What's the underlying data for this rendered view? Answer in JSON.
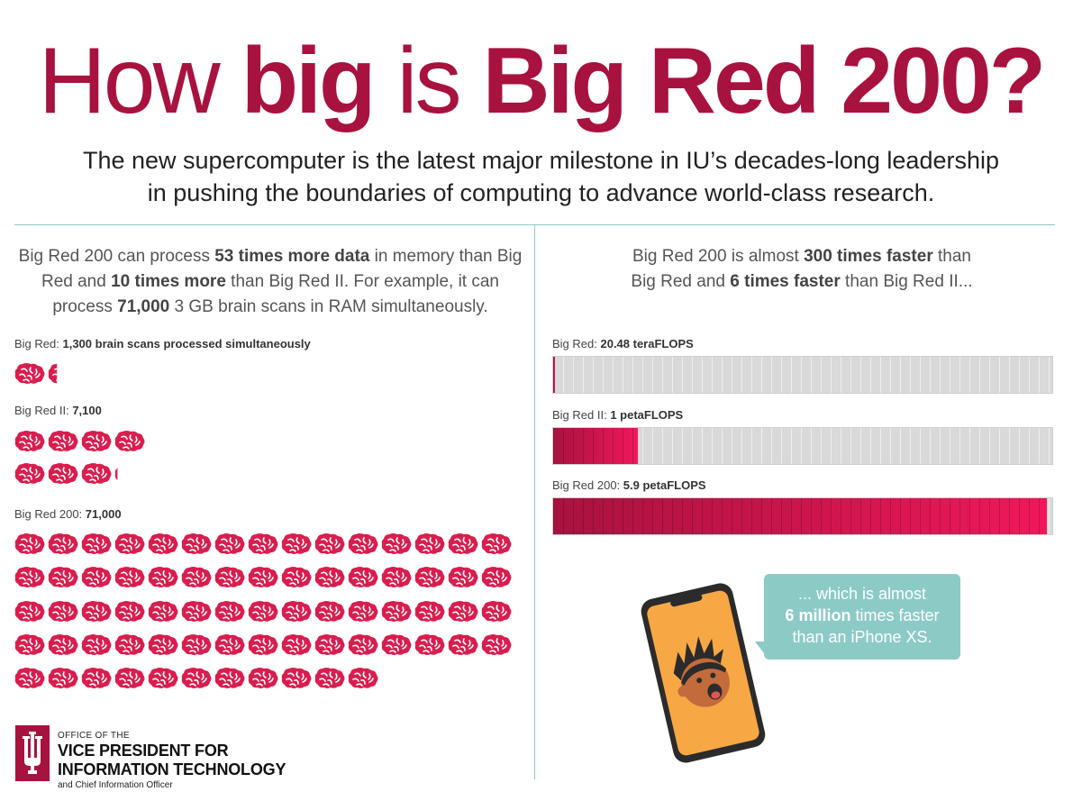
{
  "header": {
    "title_part1": "How ",
    "title_part2": "big",
    "title_part3": " is ",
    "title_part4": "Big Red 200?",
    "subtitle_line1": "The new supercomputer is the latest major milestone in IU’s decades-long leadership",
    "subtitle_line2": "in pushing the boundaries of computing to advance world-class research."
  },
  "left": {
    "intro": {
      "t1": "Big Red 200 can process ",
      "b1": "53 times more data",
      "t2": " in memory than Big Red and ",
      "b2": "10 times more",
      "t3": " than Big Red II. For example, it can process ",
      "b3": "71,000",
      "t4": " 3 GB brain scans in RAM simultaneously."
    },
    "groups": [
      {
        "name": "Big Red: ",
        "value": "1,300 brain scans processed simultaneously",
        "count": 1.3
      },
      {
        "name": "Big Red II: ",
        "value": "7,100",
        "count": 7.1
      },
      {
        "name": "Big Red 200: ",
        "value": "71,000",
        "count": 71
      }
    ]
  },
  "right": {
    "intro": {
      "t1": "Big Red 200 is almost ",
      "b1": "300 times faster",
      "t2": " than Big Red and ",
      "b2": "6 times faster",
      "t3": " than Big Red II..."
    },
    "bars": [
      {
        "name": "Big Red: ",
        "value": "20.48 teraFLOPS",
        "fraction": 0.0035
      },
      {
        "name": "Big Red II: ",
        "value": "1 petaFLOPS",
        "fraction": 0.169
      },
      {
        "name": "Big Red 200: ",
        "value": "5.9 petaFLOPS",
        "fraction": 0.99
      }
    ],
    "bubble": {
      "line1": "... which is almost",
      "bold": "6 million",
      "line2": " times faster",
      "line3": "than an iPhone XS."
    }
  },
  "logo": {
    "line1": "OFFICE OF THE",
    "line2": "VICE PRESIDENT FOR",
    "line3": "INFORMATION TECHNOLOGY",
    "line4": "and Chief Information Officer"
  },
  "colors": {
    "crimson": "#a8123e",
    "brain": "#d81e4f",
    "bar_fill_start": "#a8123e",
    "bar_fill_end": "#f0185a",
    "teal": "#8ccac6",
    "phone": "#f7a845"
  }
}
